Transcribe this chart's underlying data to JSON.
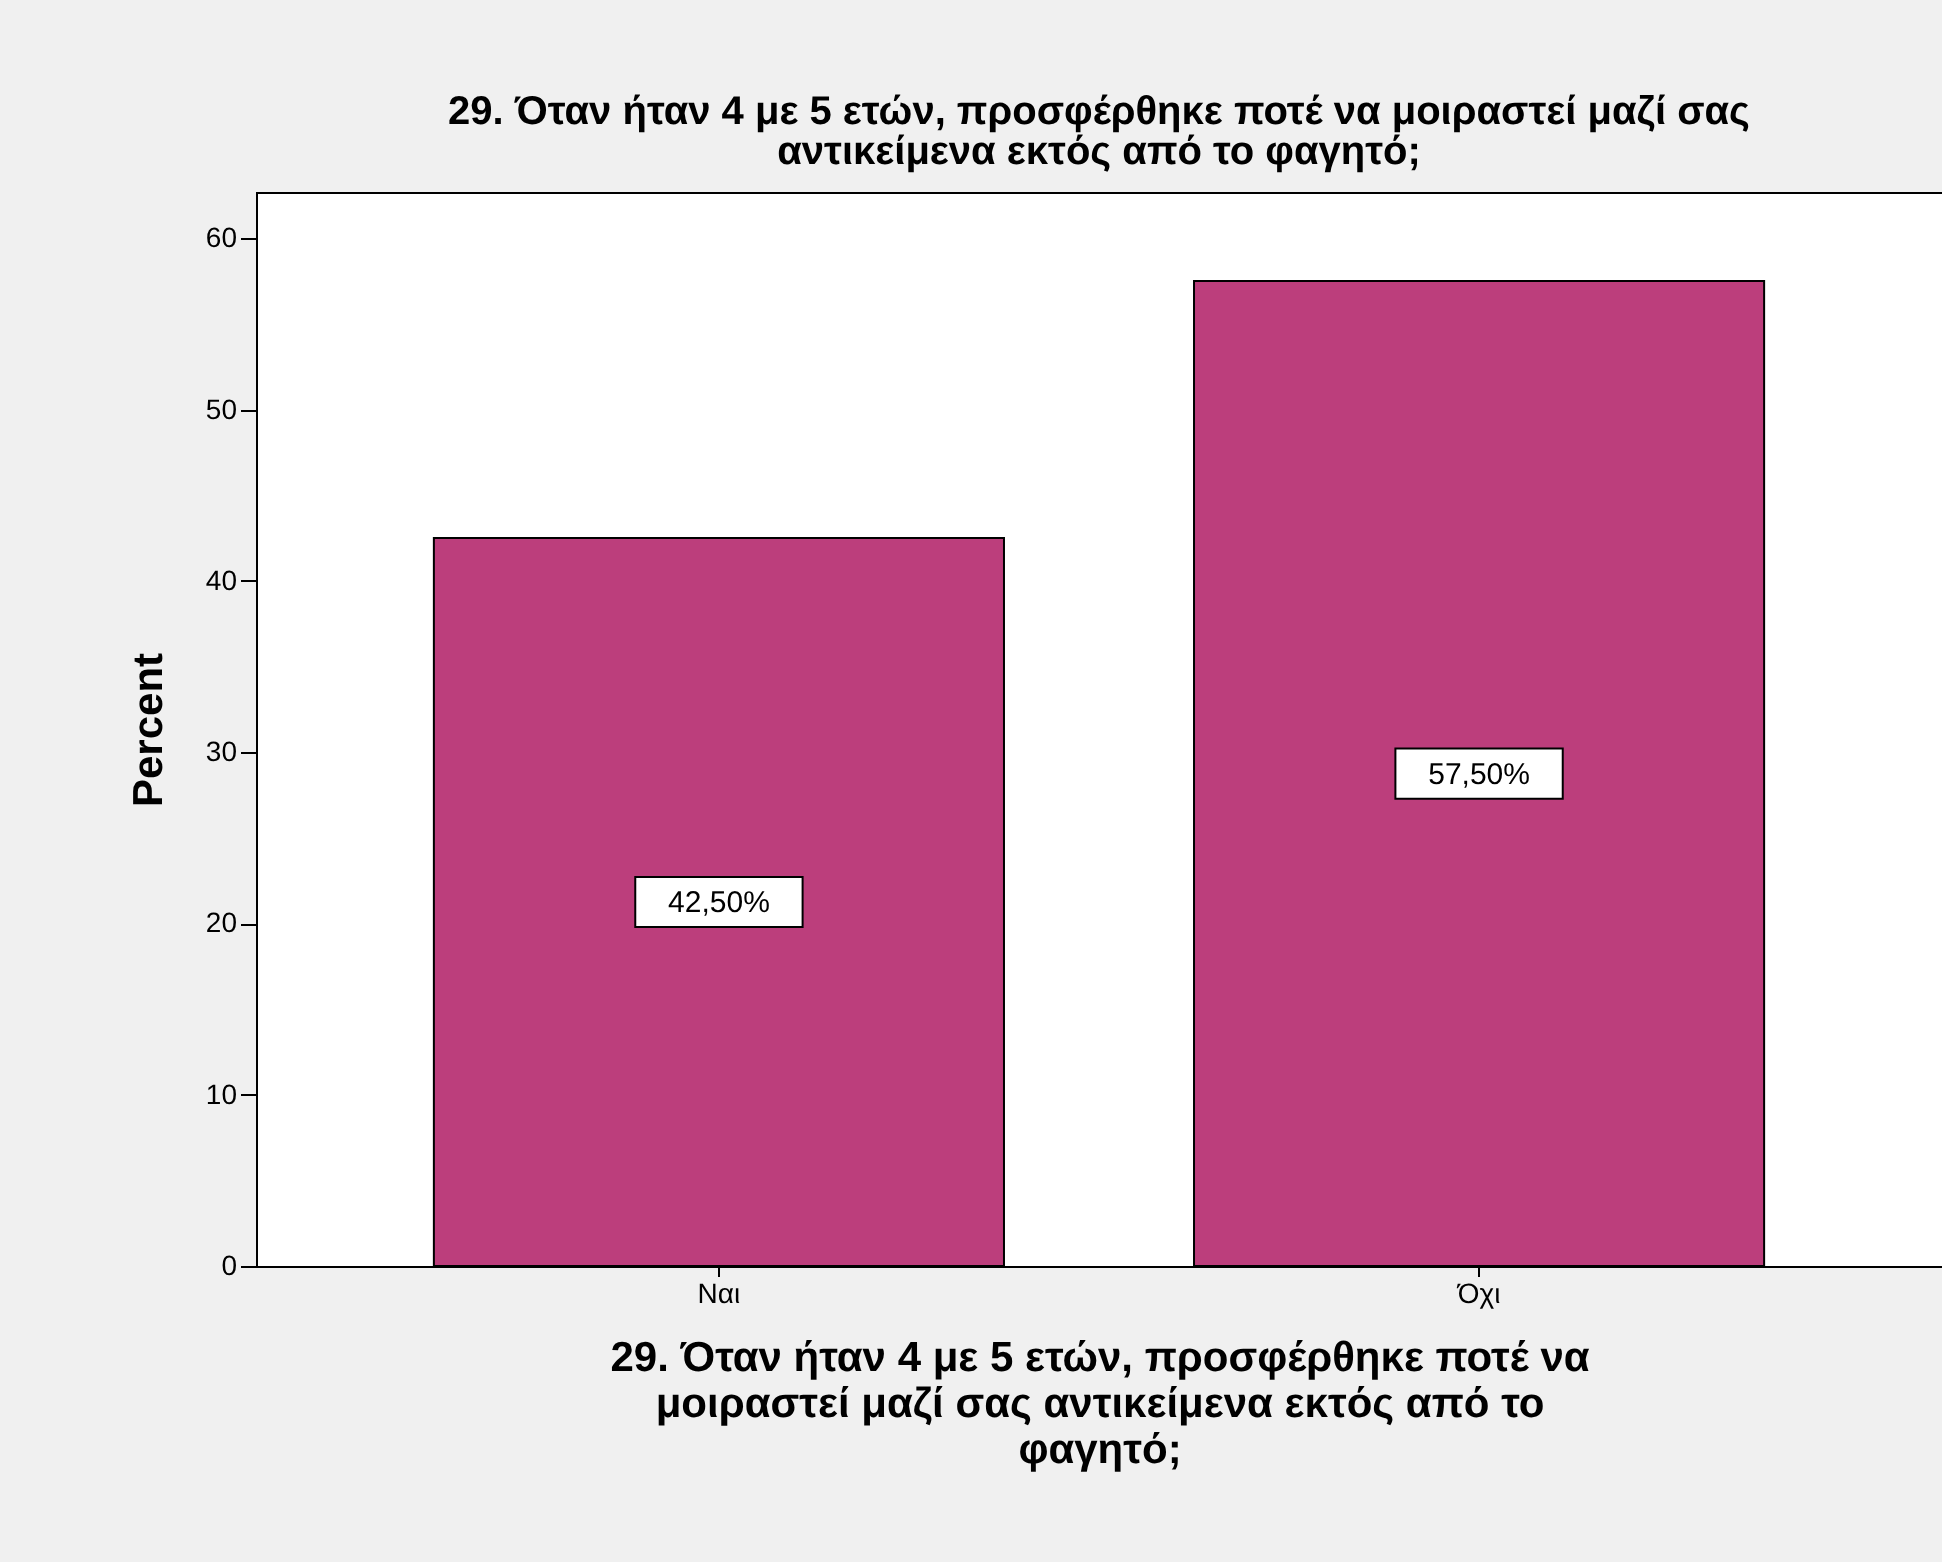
{
  "chart_data": {
    "type": "bar",
    "title": "29. Όταν ήταν 4 με 5 ετών, προσφέρθηκε ποτέ να μοιραστεί μαζί σας αντικείμενα εκτός από το φαγητό;",
    "xlabel": "29. Όταν ήταν 4 με 5 ετών, προσφέρθηκε ποτέ να μοιραστεί μαζί σας αντικείμενα εκτός από το φαγητό;",
    "ylabel": "Percent",
    "categories": [
      "Ναι",
      "Όχι"
    ],
    "values": [
      42.5,
      57.5
    ],
    "value_labels": [
      "42,50%",
      "57,50%"
    ],
    "color": "#bc3e7c",
    "ylim": [
      0,
      62.7
    ],
    "yticks": [
      0,
      10,
      20,
      30,
      40,
      50,
      60
    ],
    "grid": false
  }
}
